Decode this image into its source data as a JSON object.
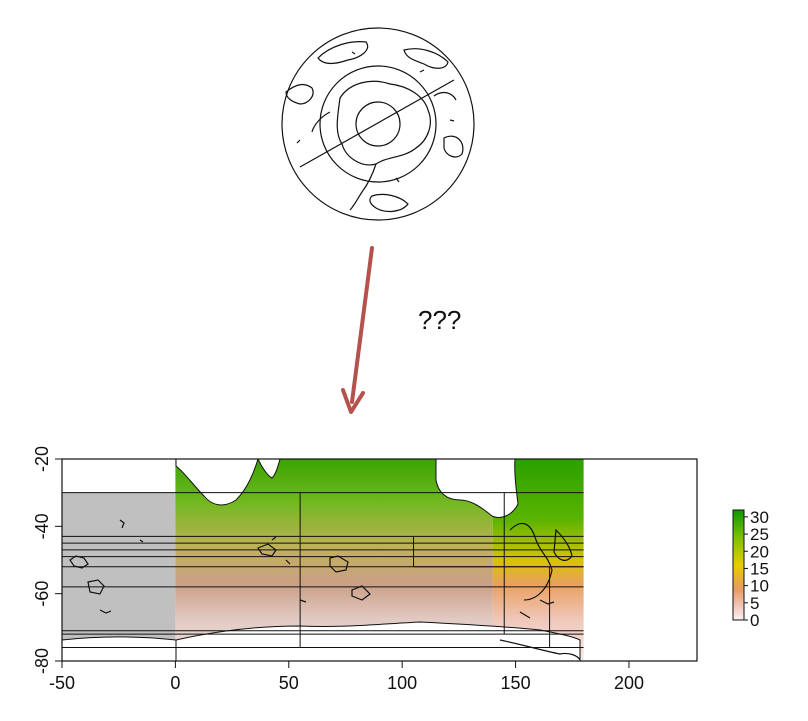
{
  "annotation": {
    "question_text": "???"
  },
  "colors": {
    "arrow": "#b5524e",
    "land_grey": "#c0c0c0",
    "scale_high": "#1fa000",
    "scale_mid": "#e8d200",
    "scale_low": "#f2e0dc"
  },
  "icons": {
    "polar_map": "south-polar-stereographic-map-icon",
    "arrow": "down-arrow-icon"
  },
  "chart_data": {
    "type": "heatmap",
    "title": "",
    "xlabel": "",
    "ylabel": "",
    "xlim": [
      -50,
      230
    ],
    "ylim": [
      -80,
      -20
    ],
    "x_ticks": [
      "-50",
      "0",
      "50",
      "100",
      "150",
      "200"
    ],
    "y_ticks": [
      "-20",
      "-40",
      "-60",
      "-80"
    ],
    "x_tick_values": [
      -50,
      0,
      50,
      100,
      150,
      200
    ],
    "y_tick_values": [
      -20,
      -40,
      -60,
      -80
    ],
    "data_extent": {
      "lon": [
        0,
        180
      ],
      "lat": [
        -80,
        -20
      ]
    },
    "grey_extent": {
      "lon": [
        -50,
        0
      ],
      "lat": [
        -76,
        -30
      ]
    },
    "grid_lat_lines": [
      -30,
      -43,
      -45,
      -47,
      -49,
      -52,
      -58,
      -71,
      -72,
      -76
    ],
    "grid_lon_segments": [
      {
        "lon": 55,
        "lat": [
          -76,
          -30
        ]
      },
      {
        "lon": 105,
        "lat": [
          -52,
          -43
        ]
      },
      {
        "lon": 145,
        "lat": [
          -72,
          -30
        ]
      },
      {
        "lon": 165,
        "lat": [
          -76,
          -52
        ]
      }
    ],
    "legend": {
      "placement": "right",
      "ticks": [
        "30",
        "25",
        "20",
        "15",
        "10",
        "5",
        "0"
      ],
      "tick_values": [
        30,
        25,
        20,
        15,
        10,
        5,
        0
      ],
      "min": 0,
      "max": 32
    }
  }
}
